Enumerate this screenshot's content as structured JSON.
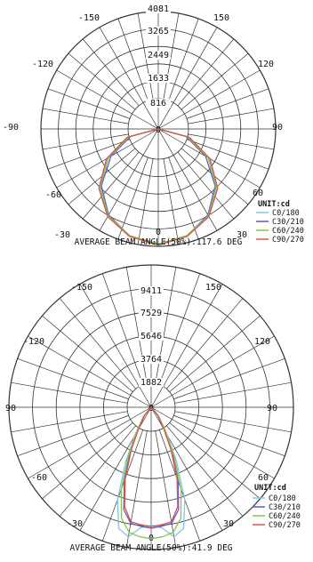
{
  "chart_data": [
    {
      "type": "polar",
      "unit_label": "UNIT:cd",
      "radial_ticks": [
        "816",
        "1633",
        "2449",
        "3265",
        "4081"
      ],
      "angle_labels": [
        "-150",
        "150",
        "-120",
        "120",
        "-90",
        "90",
        "-60",
        "60",
        "-30",
        "30",
        "0",
        "0"
      ],
      "footer": "AVERAGE BEAM ANGLE(50%):117.6 DEG",
      "rmax": 4081,
      "series": [
        {
          "name": "C0/180",
          "color": "#7ec8e3",
          "theta": [
            -90,
            -75,
            -60,
            -45,
            -30,
            -15,
            0,
            15,
            30,
            45,
            60,
            75,
            90
          ],
          "values": [
            0,
            1100,
            2050,
            2900,
            3500,
            3850,
            4000,
            3850,
            3500,
            2900,
            2050,
            1100,
            0
          ]
        },
        {
          "name": "C30/210",
          "color": "#5b5fc7",
          "theta": [
            -90,
            -75,
            -60,
            -45,
            -30,
            -15,
            0,
            15,
            30,
            45,
            60,
            75,
            90
          ],
          "values": [
            0,
            1000,
            1900,
            2800,
            3450,
            3850,
            4020,
            3850,
            3450,
            2800,
            1900,
            1000,
            0
          ]
        },
        {
          "name": "C60/240",
          "color": "#8bc34a",
          "theta": [
            -90,
            -75,
            -60,
            -45,
            -30,
            -15,
            0,
            15,
            30,
            45,
            60,
            75,
            90
          ],
          "values": [
            0,
            1050,
            2000,
            2850,
            3480,
            3840,
            4000,
            3840,
            3480,
            2850,
            2000,
            1050,
            0
          ]
        },
        {
          "name": "C90/270",
          "color": "#d9534f",
          "theta": [
            -90,
            -75,
            -60,
            -45,
            -30,
            -15,
            0,
            15,
            30,
            45,
            60,
            75,
            90
          ],
          "values": [
            0,
            1120,
            2080,
            2920,
            3520,
            3870,
            4040,
            3870,
            3520,
            2920,
            2080,
            1120,
            0
          ]
        }
      ]
    },
    {
      "type": "polar",
      "unit_label": "UNIT:cd",
      "radial_ticks": [
        "1882",
        "3764",
        "5646",
        "7529",
        "9411"
      ],
      "angle_labels": [
        "-150",
        "150",
        "-120",
        "120",
        "90",
        "90",
        "-60",
        "60",
        "-30",
        "30",
        "0"
      ],
      "footer": "AVERAGE BEAM ANGLE(50%):41.9 DEG",
      "rmax": 9411,
      "series": [
        {
          "name": "C0/180",
          "color": "#7ec8e3",
          "theta": [
            -50,
            -40,
            -30,
            -25,
            -20,
            -15,
            -10,
            -5,
            0,
            5,
            10,
            15,
            20,
            25,
            30,
            40,
            50
          ],
          "values": [
            0,
            800,
            2200,
            4000,
            6500,
            8300,
            8700,
            8000,
            7800,
            8000,
            8700,
            8300,
            6500,
            4000,
            2200,
            800,
            0
          ]
        },
        {
          "name": "C30/210",
          "color": "#5b5fc7",
          "theta": [
            -50,
            -40,
            -30,
            -25,
            -20,
            -15,
            -10,
            -5,
            0,
            5,
            10,
            15,
            20,
            25,
            30,
            40,
            50
          ],
          "values": [
            0,
            700,
            1800,
            3300,
            5200,
            7000,
            7800,
            7900,
            8000,
            7900,
            7800,
            7000,
            5200,
            3300,
            1800,
            700,
            0
          ]
        },
        {
          "name": "C60/240",
          "color": "#8bc34a",
          "theta": [
            -50,
            -40,
            -30,
            -25,
            -20,
            -15,
            -10,
            -5,
            0,
            5,
            10,
            15,
            20,
            25,
            30,
            40,
            50
          ],
          "values": [
            0,
            750,
            2000,
            3600,
            5800,
            7600,
            8400,
            8600,
            8700,
            8600,
            8400,
            7600,
            5800,
            3600,
            2000,
            750,
            0
          ]
        },
        {
          "name": "C90/270",
          "color": "#d9534f",
          "theta": [
            -50,
            -40,
            -30,
            -25,
            -20,
            -15,
            -10,
            -5,
            0,
            5,
            10,
            15,
            20,
            25,
            30,
            40,
            50
          ],
          "values": [
            0,
            650,
            1700,
            3100,
            5000,
            6800,
            7700,
            7800,
            7900,
            7800,
            7700,
            6800,
            5000,
            3100,
            1700,
            650,
            0
          ]
        }
      ]
    }
  ]
}
